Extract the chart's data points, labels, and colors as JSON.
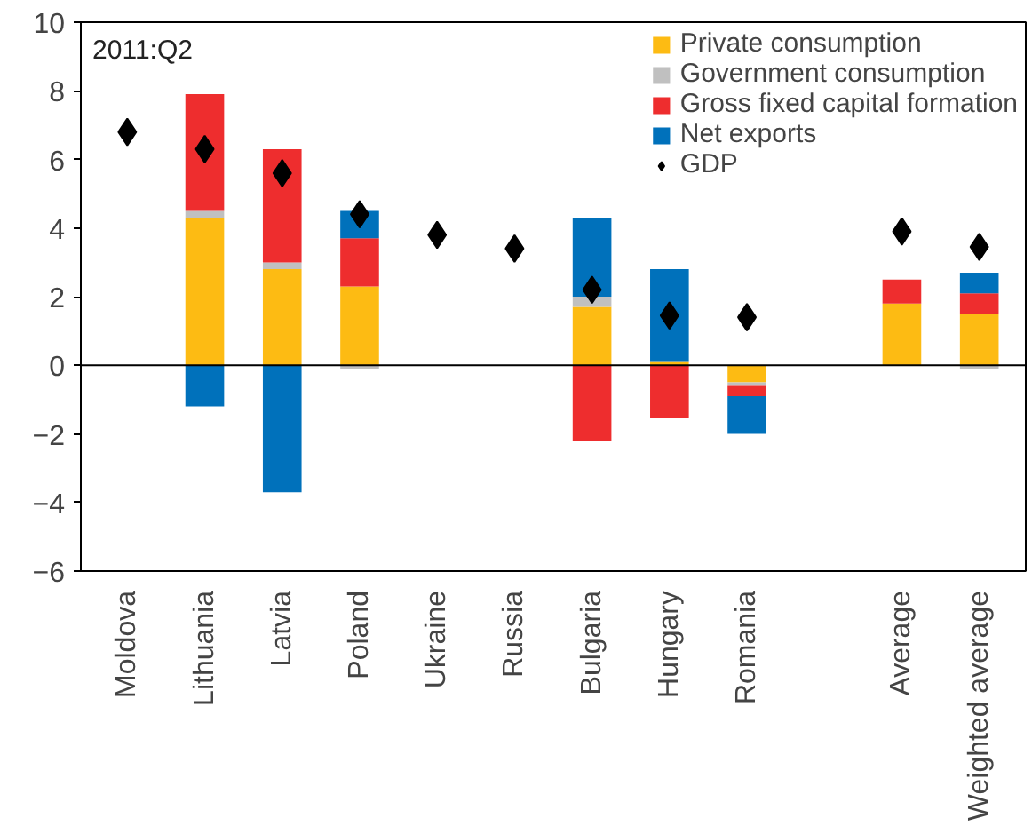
{
  "chart_data": {
    "type": "bar",
    "stacked": true,
    "categories": [
      "Moldova",
      "Lithuania",
      "Latvia",
      "Poland",
      "Ukraine",
      "Russia",
      "Bulgaria",
      "Hungary",
      "Romania",
      null,
      "Average",
      "Weighted average"
    ],
    "series": [
      {
        "name": "Private consumption",
        "color": "#fdbb13",
        "values": [
          null,
          4.3,
          2.8,
          2.3,
          null,
          null,
          1.7,
          0.1,
          -0.5,
          null,
          1.8,
          1.5
        ]
      },
      {
        "name": "Government consumption",
        "color": "#c0c0c0",
        "values": [
          null,
          0.2,
          0.2,
          -0.1,
          null,
          null,
          0.3,
          null,
          -0.1,
          null,
          null,
          -0.1
        ]
      },
      {
        "name": "Gross fixed capital formation",
        "color": "#ee2d2e",
        "values": [
          null,
          3.4,
          3.3,
          1.4,
          null,
          null,
          -2.2,
          -1.55,
          -0.3,
          null,
          0.7,
          0.6
        ]
      },
      {
        "name": "Net exports",
        "color": "#0071bb",
        "values": [
          null,
          -1.2,
          -3.7,
          0.8,
          null,
          null,
          2.3,
          2.7,
          -1.1,
          null,
          null,
          0.6
        ]
      },
      {
        "name": "GDP",
        "type": "scatter",
        "marker": "diamond",
        "color": "#000000",
        "values": [
          6.8,
          6.3,
          5.6,
          4.4,
          3.8,
          3.4,
          2.2,
          1.45,
          1.4,
          null,
          3.9,
          3.45
        ]
      }
    ],
    "ylim": [
      -6,
      10
    ],
    "yticks": [
      -6,
      -4,
      -2,
      0,
      2,
      4,
      6,
      8,
      10
    ],
    "ref_lines": [
      {
        "axis": "y",
        "value": 0,
        "color": "#000000"
      }
    ],
    "annotations": [
      "2011:Q2"
    ],
    "legend": "top right",
    "grid": false
  }
}
